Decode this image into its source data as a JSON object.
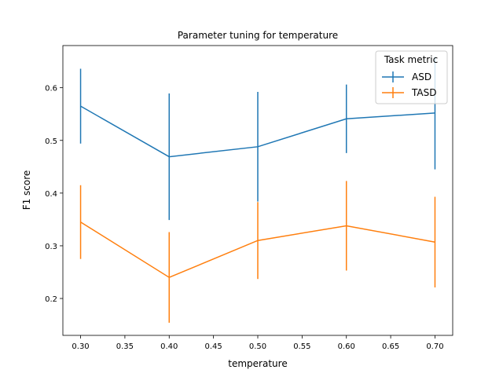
{
  "chart_data": {
    "type": "line",
    "title": "Parameter tuning for temperature",
    "xlabel": "temperature",
    "ylabel": "F1 score",
    "x": [
      0.3,
      0.4,
      0.5,
      0.6,
      0.7
    ],
    "xlim": [
      0.28,
      0.72
    ],
    "ylim": [
      0.13,
      0.68
    ],
    "xticks": [
      "0.30",
      "0.35",
      "0.40",
      "0.45",
      "0.50",
      "0.55",
      "0.60",
      "0.65",
      "0.70"
    ],
    "yticks": [
      "0.2",
      "0.3",
      "0.4",
      "0.5",
      "0.6"
    ],
    "grid": false,
    "legend": {
      "title": "Task metric",
      "placement": "top-right"
    },
    "series": [
      {
        "name": "ASD",
        "color": "#1f77b4",
        "values": [
          0.565,
          0.469,
          0.488,
          0.541,
          0.552
        ],
        "errors": [
          0.071,
          0.12,
          0.104,
          0.065,
          0.107
        ]
      },
      {
        "name": "TASD",
        "color": "#ff7f0e",
        "values": [
          0.345,
          0.24,
          0.31,
          0.338,
          0.307
        ],
        "errors": [
          0.07,
          0.086,
          0.073,
          0.085,
          0.086
        ]
      }
    ]
  }
}
